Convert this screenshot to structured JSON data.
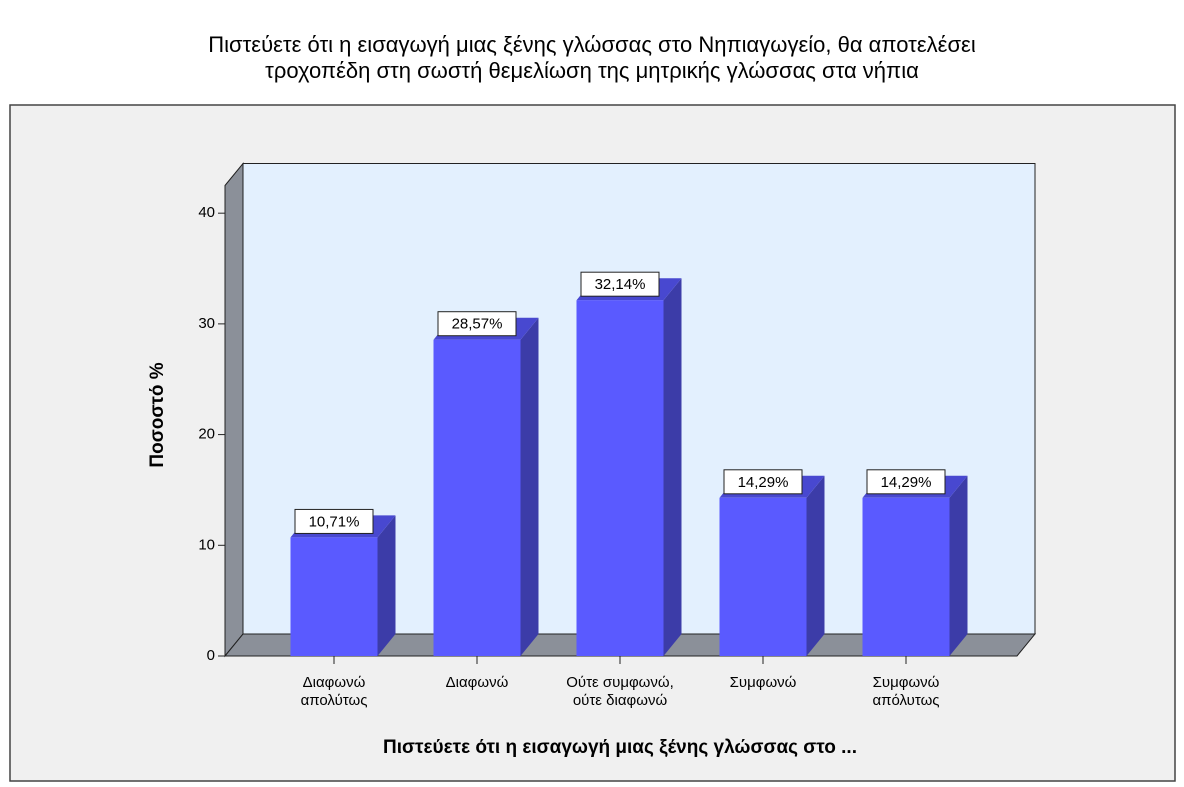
{
  "chart_data": {
    "type": "bar3d",
    "title": [
      "Πιστεύετε ότι η εισαγωγή μιας ξένης γλώσσας στο Νηπιαγωγείο, θα αποτελέσει",
      "τροχοπέδη στη σωστή θεμελίωση της μητρικής γλώσσας στα νήπια"
    ],
    "categories": [
      [
        "Διαφωνώ",
        "απολύτως"
      ],
      [
        "Διαφωνώ"
      ],
      [
        "Ούτε συμφωνώ,",
        "ούτε διαφωνώ"
      ],
      [
        "Συμφωνώ"
      ],
      [
        "Συμφωνώ",
        "απόλυτως"
      ]
    ],
    "values": [
      10.71,
      28.57,
      32.14,
      14.29,
      14.29
    ],
    "value_labels": [
      "10,71%",
      "28,57%",
      "32,14%",
      "14,29%",
      "14,29%"
    ],
    "color": "#5a5aff",
    "ylabel": "Ποσοστό %",
    "xlabel": "Πιστεύετε ότι η εισαγωγή μιας ξένης γλώσσας στο ...",
    "ylim": [
      0,
      42.5
    ],
    "yticks": [
      0,
      10,
      20,
      30,
      40
    ]
  }
}
